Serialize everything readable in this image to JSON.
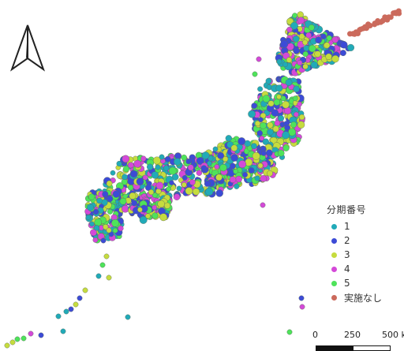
{
  "map": {
    "north_arrow": "north-arrow-icon",
    "colors": {
      "land_outline": "#5a6a5a"
    }
  },
  "legend": {
    "title": "分期番号",
    "items": [
      {
        "label": "1",
        "color": "#21aab8"
      },
      {
        "label": "2",
        "color": "#3c4bd6"
      },
      {
        "label": "3",
        "color": "#c6dc3e"
      },
      {
        "label": "4",
        "color": "#d449d8"
      },
      {
        "label": "5",
        "color": "#4ee35a"
      },
      {
        "label": "実施なし",
        "color": "#cb6a5c"
      }
    ]
  },
  "scalebar": {
    "labels": [
      "0",
      "250",
      "500 k"
    ]
  }
}
